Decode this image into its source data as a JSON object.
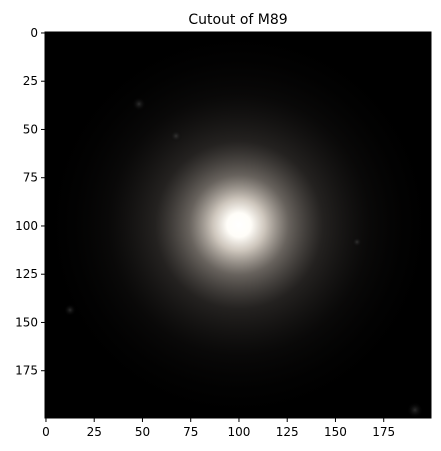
{
  "chart_data": {
    "type": "heatmap",
    "title": "Cutout of M89",
    "xlabel": "",
    "ylabel": "",
    "image_shape": [
      200,
      200
    ],
    "xlim": [
      0,
      199
    ],
    "ylim": [
      199,
      0
    ],
    "x_ticks": [
      0,
      25,
      50,
      75,
      100,
      125,
      150,
      175
    ],
    "y_ticks": [
      0,
      25,
      50,
      75,
      100,
      125,
      150,
      175
    ],
    "x_tick_labels": [
      "0",
      "25",
      "50",
      "75",
      "100",
      "125",
      "150",
      "175"
    ],
    "y_tick_labels": [
      "0",
      "25",
      "50",
      "75",
      "100",
      "125",
      "150",
      "175"
    ],
    "grid": false,
    "origin": "upper",
    "colormap": "grayscale (RGB image)",
    "galaxy_center": [
      100,
      100
    ],
    "colors": {
      "background": "#000000",
      "core": "#ffffff",
      "halo": "#b0a8a0"
    }
  }
}
